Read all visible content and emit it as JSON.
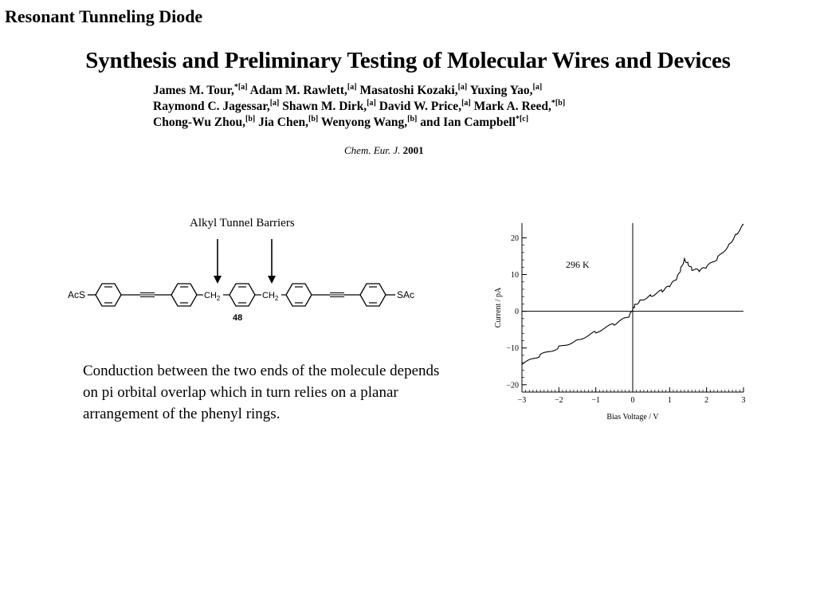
{
  "slide": {
    "title": "Resonant Tunneling Diode"
  },
  "paper": {
    "title": "Synthesis and Preliminary Testing of Molecular Wires and Devices",
    "authors": [
      {
        "segments": [
          {
            "name": "James M. Tour,",
            "sup": "*[a]"
          },
          {
            "name": "Adam M. Rawlett,",
            "sup": "[a]"
          },
          {
            "name": "Masatoshi Kozaki,",
            "sup": "[a]"
          },
          {
            "name": "Yuxing Yao,",
            "sup": "[a]"
          }
        ]
      },
      {
        "segments": [
          {
            "name": "Raymond C. Jagessar,",
            "sup": "[a]"
          },
          {
            "name": "Shawn M. Dirk,",
            "sup": "[a]"
          },
          {
            "name": "David W. Price,",
            "sup": "[a]"
          },
          {
            "name": "Mark A. Reed,",
            "sup": "*[b]"
          }
        ]
      },
      {
        "segments": [
          {
            "name": "Chong-Wu Zhou,",
            "sup": "[b]"
          },
          {
            "name": "Jia Chen,",
            "sup": "[b]"
          },
          {
            "name": "Wenyong Wang,",
            "sup": "[b]"
          },
          {
            "name": "and Ian Campbell",
            "sup": "*[c]"
          }
        ]
      }
    ],
    "journal": "Chem. Eur. J.",
    "year": "2001"
  },
  "molecule": {
    "barrier_label": "Alkyl Tunnel Barriers",
    "left_group": "AcS",
    "right_group": "SAc",
    "ch2_label": "CH",
    "ch2_subscript": "2",
    "compound_number": "48"
  },
  "description": "Conduction between the two ends of the molecule depends on pi orbital overlap which in turn relies on a planar arrangement of the phenyl rings.",
  "chart_data": {
    "type": "line",
    "xlabel": "Bias Voltage / V",
    "ylabel": "Current / pA",
    "xlim": [
      -3,
      3
    ],
    "ylim": [
      -22,
      24
    ],
    "xticks": [
      -3,
      -2,
      -1,
      0,
      1,
      2,
      3
    ],
    "yticks": [
      -20,
      -10,
      0,
      10,
      20
    ],
    "annotation": "296 K",
    "grid": false,
    "series": [
      {
        "x": [
          -3.0,
          -2.5,
          -2.0,
          -1.5,
          -1.0,
          -0.5,
          -0.1,
          0.0,
          0.05,
          0.2,
          0.5,
          0.8,
          1.0,
          1.2,
          1.3,
          1.4,
          1.5,
          1.6,
          1.8,
          2.0,
          2.3,
          2.6,
          2.8,
          3.0
        ],
        "y": [
          -14.5,
          -12.0,
          -9.8,
          -7.8,
          -5.6,
          -3.5,
          -1.5,
          0.5,
          1.5,
          3.0,
          4.3,
          5.6,
          6.8,
          9.0,
          11.5,
          14.2,
          13.0,
          11.5,
          11.0,
          12.0,
          14.5,
          18.0,
          21.0,
          23.5
        ]
      }
    ]
  }
}
